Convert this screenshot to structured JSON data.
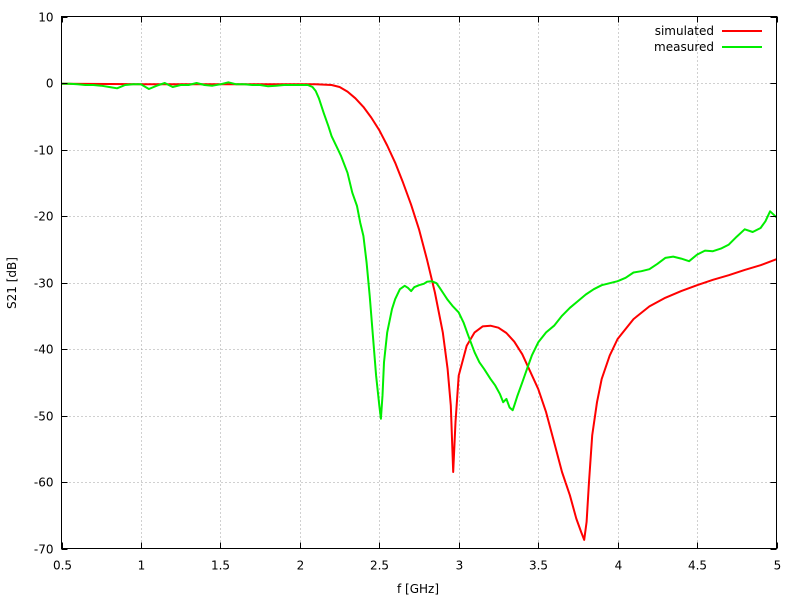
{
  "chart_data": {
    "type": "line",
    "title": "",
    "xlabel": "f [GHz]",
    "ylabel": "S21 [dB]",
    "xlim": [
      0.5,
      5
    ],
    "ylim": [
      -70,
      10
    ],
    "x_ticks": [
      0.5,
      1,
      1.5,
      2,
      2.5,
      3,
      3.5,
      4,
      4.5,
      5
    ],
    "x_tick_labels": [
      "0.5",
      "1",
      "1.5",
      "2",
      "2.5",
      "3",
      "3.5",
      "4",
      "4.5",
      "5"
    ],
    "y_ticks": [
      10,
      0,
      -10,
      -20,
      -30,
      -40,
      -50,
      -60,
      -70
    ],
    "y_tick_labels": [
      "10",
      "0",
      "-10",
      "-20",
      "-30",
      "-40",
      "-50",
      "-60",
      "-70"
    ],
    "grid": true,
    "legend_position": "top-right",
    "series": [
      {
        "name": "simulated",
        "color": "#ff0000",
        "x": [
          0.5,
          0.8,
          1.0,
          1.3,
          1.6,
          1.8,
          2.0,
          2.1,
          2.2,
          2.25,
          2.3,
          2.35,
          2.4,
          2.45,
          2.5,
          2.55,
          2.6,
          2.65,
          2.7,
          2.75,
          2.8,
          2.85,
          2.9,
          2.93,
          2.95,
          2.965,
          2.98,
          3.0,
          3.05,
          3.1,
          3.15,
          3.2,
          3.25,
          3.3,
          3.35,
          3.4,
          3.5,
          3.55,
          3.6,
          3.65,
          3.7,
          3.74,
          3.77,
          3.79,
          3.805,
          3.82,
          3.84,
          3.87,
          3.9,
          3.95,
          4.0,
          4.1,
          4.2,
          4.3,
          4.4,
          4.5,
          4.6,
          4.7,
          4.8,
          4.9,
          5.0
        ],
        "y": [
          -0.1,
          -0.15,
          -0.2,
          -0.2,
          -0.2,
          -0.2,
          -0.2,
          -0.2,
          -0.3,
          -0.6,
          -1.3,
          -2.3,
          -3.6,
          -5.2,
          -7.1,
          -9.4,
          -12.0,
          -15.0,
          -18.3,
          -22.0,
          -26.5,
          -31.5,
          -37.5,
          -43.0,
          -48.5,
          -58.5,
          -51.0,
          -44.0,
          -39.5,
          -37.5,
          -36.6,
          -36.5,
          -36.8,
          -37.6,
          -38.9,
          -40.8,
          -46.0,
          -49.5,
          -54.0,
          -58.5,
          -62.0,
          -65.5,
          -67.5,
          -68.7,
          -66.0,
          -60.0,
          -53.0,
          -48.0,
          -44.5,
          -41.0,
          -38.5,
          -35.5,
          -33.6,
          -32.3,
          -31.3,
          -30.4,
          -29.6,
          -28.9,
          -28.1,
          -27.4,
          -26.5
        ]
      },
      {
        "name": "measured",
        "color": "#00ee00",
        "x": [
          0.5,
          0.55,
          0.6,
          0.65,
          0.7,
          0.75,
          0.8,
          0.85,
          0.9,
          0.95,
          1.0,
          1.05,
          1.1,
          1.15,
          1.2,
          1.25,
          1.3,
          1.35,
          1.4,
          1.45,
          1.5,
          1.55,
          1.6,
          1.65,
          1.7,
          1.75,
          1.8,
          1.85,
          1.9,
          1.95,
          2.0,
          2.05,
          2.08,
          2.1,
          2.12,
          2.15,
          2.18,
          2.2,
          2.23,
          2.26,
          2.3,
          2.33,
          2.36,
          2.38,
          2.4,
          2.42,
          2.44,
          2.46,
          2.48,
          2.5,
          2.51,
          2.52,
          2.53,
          2.55,
          2.58,
          2.6,
          2.63,
          2.66,
          2.68,
          2.7,
          2.72,
          2.75,
          2.78,
          2.8,
          2.83,
          2.86,
          2.88,
          2.9,
          2.93,
          2.96,
          3.0,
          3.03,
          3.06,
          3.1,
          3.13,
          3.16,
          3.2,
          3.23,
          3.26,
          3.28,
          3.3,
          3.32,
          3.34,
          3.35,
          3.37,
          3.4,
          3.43,
          3.46,
          3.5,
          3.55,
          3.6,
          3.65,
          3.7,
          3.75,
          3.8,
          3.85,
          3.9,
          3.95,
          4.0,
          4.05,
          4.1,
          4.15,
          4.2,
          4.25,
          4.3,
          4.35,
          4.4,
          4.45,
          4.5,
          4.55,
          4.6,
          4.65,
          4.7,
          4.75,
          4.8,
          4.85,
          4.9,
          4.93,
          4.96,
          5.0
        ],
        "y": [
          -0.1,
          -0.1,
          -0.2,
          -0.3,
          -0.3,
          -0.4,
          -0.6,
          -0.8,
          -0.3,
          -0.2,
          -0.2,
          -0.9,
          -0.4,
          0.0,
          -0.6,
          -0.3,
          -0.3,
          0.0,
          -0.3,
          -0.4,
          -0.2,
          0.1,
          -0.2,
          -0.2,
          -0.3,
          -0.3,
          -0.5,
          -0.4,
          -0.3,
          -0.3,
          -0.3,
          -0.3,
          -0.6,
          -1.2,
          -2.3,
          -4.5,
          -6.5,
          -8.0,
          -9.5,
          -11.0,
          -13.5,
          -16.5,
          -18.5,
          -21.0,
          -23.0,
          -27.0,
          -32.0,
          -38.0,
          -44.0,
          -48.5,
          -50.5,
          -47.0,
          -42.0,
          -37.5,
          -34.0,
          -32.5,
          -31.0,
          -30.5,
          -30.8,
          -31.3,
          -30.7,
          -30.4,
          -30.2,
          -29.9,
          -29.8,
          -30.1,
          -30.8,
          -31.5,
          -32.6,
          -33.5,
          -34.5,
          -36.0,
          -38.0,
          -40.5,
          -42.0,
          -43.0,
          -44.5,
          -45.5,
          -46.8,
          -48.0,
          -47.5,
          -48.8,
          -49.2,
          -48.5,
          -47.0,
          -45.0,
          -43.0,
          -41.0,
          -39.0,
          -37.5,
          -36.5,
          -35.0,
          -33.8,
          -32.8,
          -31.8,
          -31.0,
          -30.4,
          -30.1,
          -29.8,
          -29.3,
          -28.5,
          -28.3,
          -28.0,
          -27.2,
          -26.3,
          -26.1,
          -26.4,
          -26.8,
          -25.8,
          -25.2,
          -25.3,
          -24.9,
          -24.3,
          -23.1,
          -22.0,
          -22.4,
          -21.8,
          -20.8,
          -19.3,
          -20.2
        ]
      }
    ]
  }
}
